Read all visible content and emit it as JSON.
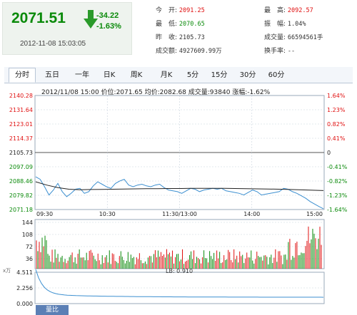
{
  "quote": {
    "price": "2071.51",
    "change": "-34.22",
    "change_pct": "-1.63%",
    "datetime": "2012-11-08 15:03:05"
  },
  "stats": [
    {
      "label": "今　开:",
      "value": "2091.25",
      "color": "red"
    },
    {
      "label": "最　高:",
      "value": "2092.57",
      "color": "red"
    },
    {
      "label": "最　低:",
      "value": "2070.65",
      "color": "green"
    },
    {
      "label": "振　幅:",
      "value": "1.04%",
      "color": ""
    },
    {
      "label": "昨　收:",
      "value": "2105.73",
      "color": ""
    },
    {
      "label": "成交量:",
      "value": "66594561手",
      "color": ""
    },
    {
      "label": "成交额:",
      "value": "4927609.99万",
      "color": ""
    },
    {
      "label": "换手率:",
      "value": "--",
      "color": ""
    }
  ],
  "tabs": [
    {
      "label": "分时",
      "active": true
    },
    {
      "label": "五日"
    },
    {
      "label": "一年"
    },
    {
      "label": "日K"
    },
    {
      "label": "周K"
    },
    {
      "label": "月K"
    },
    {
      "label": "5分"
    },
    {
      "label": "15分"
    },
    {
      "label": "30分"
    },
    {
      "label": "60分"
    }
  ],
  "status_line": "2012/11/08 15:00  价位:2071.65  均价:2082.68  成交量:93840  涨幅:-1.62%",
  "chart_data": [
    {
      "type": "line",
      "name": "intraday-price",
      "y_ticks_left": [
        "2140.28",
        "2131.64",
        "2123.01",
        "2114.37",
        "2105.73",
        "2097.09",
        "2088.46",
        "2079.82",
        "2071.18"
      ],
      "y_ticks_right": [
        "1.64%",
        "1.23%",
        "0.82%",
        "0.41%",
        "0",
        "-0.41%",
        "-0.82%",
        "-1.23%",
        "-1.64%"
      ],
      "x_ticks": [
        "09:30",
        "10:30",
        "11:30/13:00",
        "14:00",
        "15:00"
      ],
      "ylim": [
        2071.18,
        2140.28
      ],
      "baseline": 2105.73,
      "price_points": [
        2091.0,
        2089.5,
        2085.0,
        2080.0,
        2083.0,
        2087.0,
        2082.0,
        2079.0,
        2081.0,
        2083.5,
        2084.0,
        2081.0,
        2082.0,
        2085.5,
        2088.0,
        2086.5,
        2085.0,
        2084.0,
        2087.0,
        2088.5,
        2089.5,
        2086.0,
        2085.0,
        2086.0,
        2086.5,
        2085.5,
        2085.0,
        2086.0,
        2086.5,
        2084.5,
        2083.0,
        2082.5,
        2082.0,
        2081.0,
        2082.5,
        2084.0,
        2083.5,
        2082.0,
        2083.0,
        2083.5,
        2084.0,
        2083.5,
        2084.0,
        2082.5,
        2082.0,
        2081.5,
        2081.0,
        2080.0,
        2081.5,
        2083.0,
        2082.0,
        2080.0,
        2080.5,
        2081.0,
        2081.5,
        2082.0,
        2084.0,
        2083.5,
        2082.0,
        2081.0,
        2079.5,
        2078.0,
        2076.0,
        2074.5,
        2073.0,
        2071.65
      ],
      "avg_points": [
        2088.0,
        2086.0,
        2084.5,
        2083.5,
        2083.2,
        2083.3,
        2083.4,
        2083.5,
        2083.6,
        2083.7,
        2083.8,
        2083.8,
        2083.9,
        2083.9,
        2084.0,
        2084.0,
        2084.0,
        2084.0,
        2083.9,
        2083.8,
        2083.7,
        2083.6,
        2083.5,
        2083.3,
        2083.1,
        2082.9,
        2082.68
      ]
    },
    {
      "type": "bar",
      "name": "volume",
      "y_ticks": [
        "144",
        "108",
        "72",
        "36"
      ],
      "unit": "x万",
      "ylim": [
        0,
        144
      ]
    },
    {
      "type": "line",
      "name": "volume-ratio",
      "label": "LB: 0.910",
      "y_ticks": [
        "4.511",
        "2.256",
        "0.000"
      ],
      "ylim": [
        0,
        4.511
      ]
    }
  ],
  "footer_tab": "量比",
  "colors": {
    "up": "#e01010",
    "down": "#0a8a0a",
    "price_line": "#3c8fd0",
    "avg_line": "#222222"
  }
}
